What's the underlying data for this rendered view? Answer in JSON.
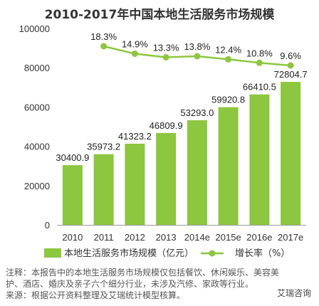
{
  "chart_data": {
    "type": "bar",
    "title": "2010-2017年中国本地生活服务市场规模",
    "categories": [
      "2010",
      "2011",
      "2012",
      "2013",
      "2014e",
      "2015e",
      "2016e",
      "2017e"
    ],
    "ylim": [
      0,
      100000
    ],
    "yticks": [
      0,
      20000,
      40000,
      60000,
      80000,
      100000
    ],
    "series": [
      {
        "name": "本地生活服务市场规模（亿元）",
        "type": "bar",
        "color": "#8dc63f",
        "values": [
          30400.9,
          35973.2,
          41323.2,
          46809.9,
          53293.0,
          59920.8,
          66410.5,
          72804.7
        ],
        "labels": [
          "30400.9",
          "35973.2",
          "41323.2",
          "46809.9",
          "53293.0",
          "59920.8",
          "66410.5",
          "72804.7"
        ]
      },
      {
        "name": "增长率（%）",
        "type": "line",
        "color": "#8dc63f",
        "values": [
          null,
          18.3,
          14.9,
          13.3,
          13.8,
          12.4,
          10.8,
          9.6
        ],
        "labels": [
          "",
          "18.3%",
          "14.9%",
          "13.3%",
          "13.8%",
          "12.4%",
          "10.8%",
          "9.6%"
        ]
      }
    ],
    "legend_position": "bottom",
    "grid": false
  },
  "notes": {
    "line1": "注释：本报告中的本地生活服务市场规模仅包括餐饮、休闲娱乐、美容美",
    "line2": "护、酒店、婚庆及亲子六个细分行业，未涉及汽修、家政等行业。",
    "line3": "来源：根据公开资料整理及艾瑞统计模型核算。"
  },
  "watermark": "艾瑞咨询"
}
